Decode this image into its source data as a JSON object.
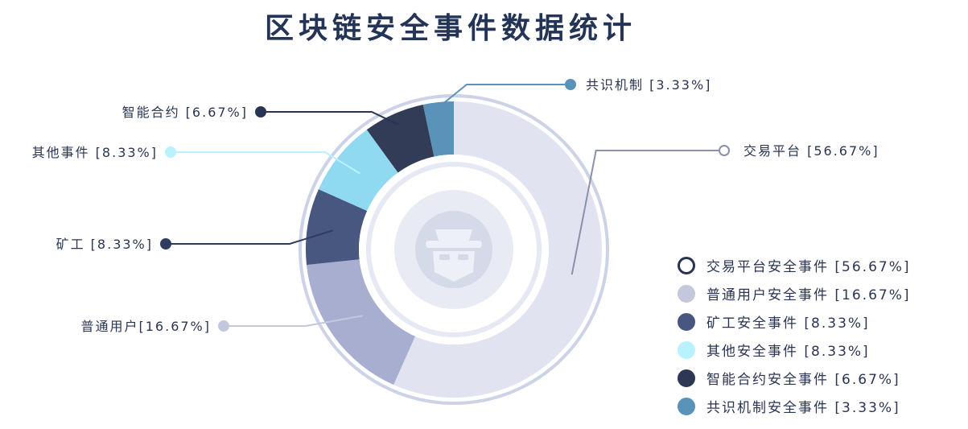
{
  "title": "区块链安全事件数据统计",
  "chart_data": {
    "type": "pie",
    "variant": "donut",
    "title": "区块链安全事件数据统计",
    "slices": [
      {
        "label": "交易平台 [56.67%]",
        "value": 56.67,
        "color": "#e1e4f0",
        "label_color": "#ffffff",
        "label_border": "#8a90a8"
      },
      {
        "label": "普通用户[16.67%]",
        "value": 16.67,
        "color": "#a7aed0",
        "label_color": "#c4c8dc",
        "label_border": "#c4c8dc"
      },
      {
        "label": "矿工 [8.33%]",
        "value": 8.33,
        "color": "#47577f",
        "label_color": "#2f3c5e",
        "label_border": "#2f3c5e"
      },
      {
        "label": "其他事件 [8.33%]",
        "value": 8.33,
        "color": "#8fd9f1",
        "label_color": "#b8f1ff",
        "label_border": "#b8f1ff"
      },
      {
        "label": "智能合约 [6.67%]",
        "value": 6.67,
        "color": "#323c57",
        "label_color": "#293352",
        "label_border": "#293352"
      },
      {
        "label": "共识机制 [3.33%]",
        "value": 3.33,
        "color": "#5a93b9",
        "label_color": "#5a93b9",
        "label_border": "#5a93b9"
      }
    ],
    "legend": {
      "position": "right",
      "items": [
        {
          "label": "交易平台安全事件 [56.67%]",
          "color": "#ffffff",
          "border": "#283352"
        },
        {
          "label": "普通用户安全事件 [16.67%]",
          "color": "#c4c8dc",
          "border": "#c4c8dc"
        },
        {
          "label": "矿工安全事件 [8.33%]",
          "color": "#47577f",
          "border": "#47577f"
        },
        {
          "label": "其他安全事件 [8.33%]",
          "color": "#b8f1ff",
          "border": "#b8f1ff"
        },
        {
          "label": "智能合约安全事件 [6.67%]",
          "color": "#2e3854",
          "border": "#2e3854"
        },
        {
          "label": "共识机制安全事件 [3.33%]",
          "color": "#5a93b9",
          "border": "#5a93b9"
        }
      ]
    },
    "center_icon": "hacker-icon"
  }
}
